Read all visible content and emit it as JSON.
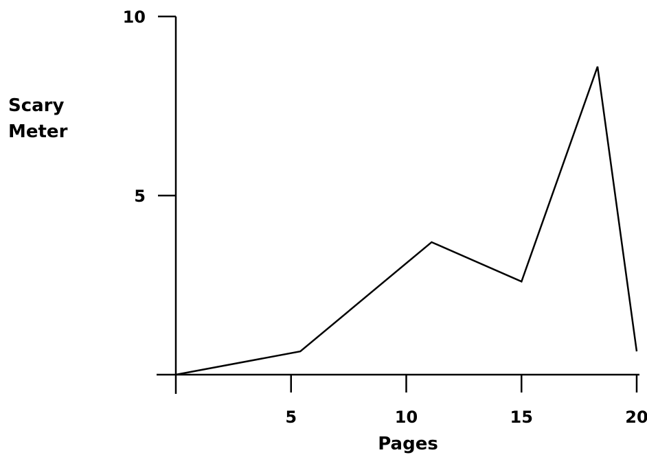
{
  "chart_data": {
    "type": "line",
    "title": "",
    "xlabel": "Pages",
    "ylabel_lines": [
      "Scary",
      "Meter"
    ],
    "xlim": [
      0,
      20
    ],
    "ylim": [
      0,
      10
    ],
    "x_ticks": [
      5,
      10,
      15,
      20
    ],
    "y_ticks": [
      5,
      10
    ],
    "grid": false,
    "series": [
      {
        "x": [
          0,
          5.4,
          11.1,
          15,
          18.3,
          20
        ],
        "y": [
          0,
          0.65,
          3.7,
          2.6,
          8.6,
          0.65
        ]
      }
    ],
    "colors": {
      "line": "#000000",
      "axis": "#000000"
    }
  }
}
